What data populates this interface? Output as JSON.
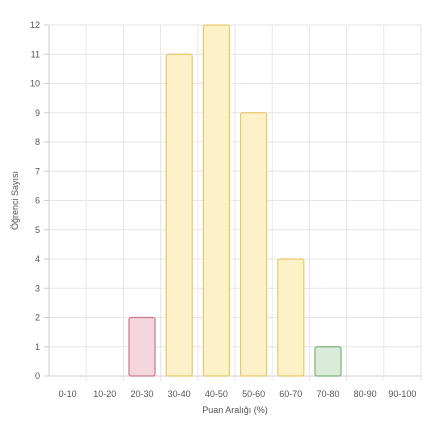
{
  "chart_data": {
    "type": "bar",
    "categories": [
      "0-10",
      "10-20",
      "20-30",
      "30-40",
      "40-50",
      "50-60",
      "60-70",
      "70-80",
      "80-90",
      "90-100"
    ],
    "values": [
      0,
      0,
      2,
      11,
      12,
      9,
      4,
      1,
      0,
      0
    ],
    "xlabel": "Puan Aralığı (%)",
    "ylabel": "Öğrenci Sayısı",
    "ylim": [
      0,
      12
    ],
    "yticks": [
      "0",
      "1",
      "2",
      "3",
      "4",
      "5",
      "6",
      "7",
      "8",
      "9",
      "10",
      "11",
      "12"
    ],
    "grid": true,
    "legend": "none",
    "colors": {
      "fill": [
        "#fde8ec",
        "#fde8ec",
        "#f6d6dd",
        "#fdf1c7",
        "#fdf1c7",
        "#fdf1c7",
        "#fdf1c7",
        "#d9ecd9",
        "#e6f2e6",
        "#e6f2e6"
      ],
      "stroke": [
        "#d98a9c",
        "#d98a9c",
        "#c97a8b",
        "#e8c96a",
        "#e8c96a",
        "#e8c96a",
        "#e8c96a",
        "#7fb37f",
        "#7fb37f",
        "#7fb37f"
      ]
    }
  }
}
